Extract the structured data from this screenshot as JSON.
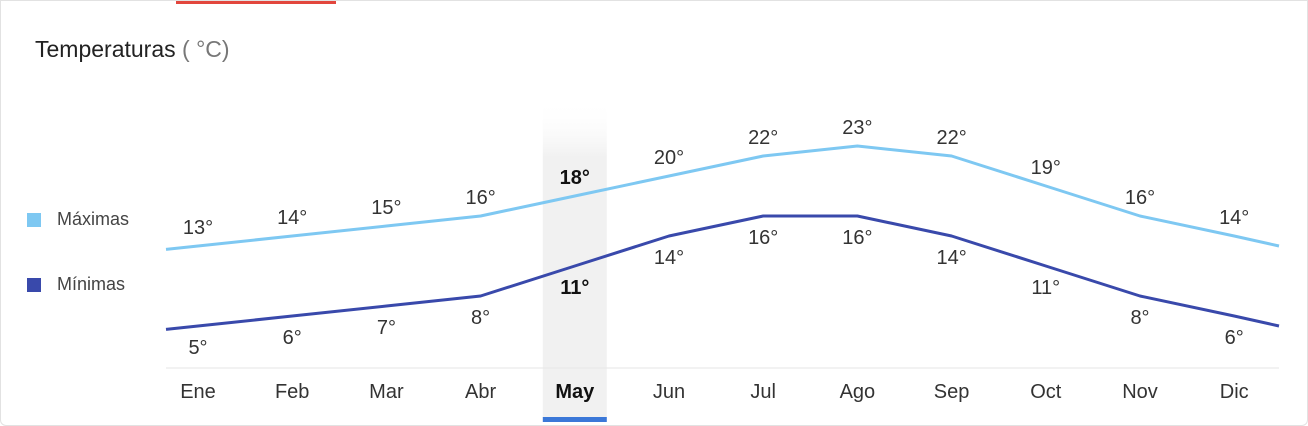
{
  "chart_data": {
    "type": "line",
    "title": "Temperaturas",
    "unit_label": "( °C)",
    "categories": [
      "Ene",
      "Feb",
      "Mar",
      "Abr",
      "May",
      "Jun",
      "Jul",
      "Ago",
      "Sep",
      "Oct",
      "Nov",
      "Dic"
    ],
    "selected": "May",
    "series": [
      {
        "name": "Máximas",
        "values": [
          13,
          14,
          15,
          16,
          18,
          20,
          22,
          23,
          22,
          19,
          16,
          14
        ],
        "color": "#7ec8f2",
        "label_position": "above"
      },
      {
        "name": "Mínimas",
        "values": [
          5,
          6,
          7,
          8,
          11,
          14,
          16,
          16,
          14,
          11,
          8,
          6
        ],
        "color": "#3949ab",
        "label_position": "below"
      }
    ],
    "degree_suffix": "°",
    "ylim": [
      5,
      23
    ],
    "grid": false,
    "legend_placement": "left"
  },
  "colors": {
    "accent": "#e2463d",
    "selected_indicator": "#3b78d8",
    "selected_band": "#f1f1f1"
  }
}
